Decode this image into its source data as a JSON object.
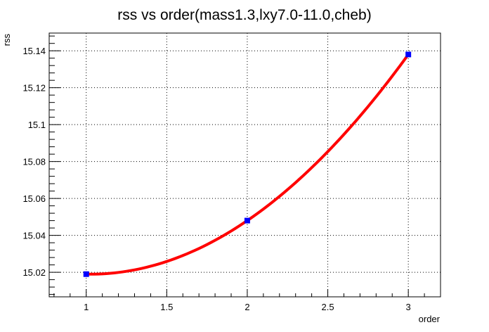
{
  "chart_data": {
    "type": "line",
    "title": "rss vs order(mass1.3,lxy7.0-11.0,cheb)",
    "xlabel": "order",
    "ylabel": "rss",
    "xlim": [
      0.77,
      3.2
    ],
    "ylim": [
      15.0067,
      15.1496
    ],
    "x_ticks": [
      1,
      1.5,
      2,
      2.5,
      3
    ],
    "x_tick_labels": [
      "1",
      "1.5",
      "2",
      "2.5",
      "3"
    ],
    "y_ticks": [
      15.02,
      15.04,
      15.06,
      15.08,
      15.1,
      15.12,
      15.14
    ],
    "y_tick_labels": [
      "15.02",
      "15.04",
      "15.06",
      "15.08",
      "15.1",
      "15.12",
      "15.14"
    ],
    "grid": true,
    "series": [
      {
        "x": [
          1,
          2,
          3
        ],
        "values": [
          15.019,
          15.048,
          15.138
        ],
        "line_color": "#ff0000",
        "marker_color": "#0000ff",
        "marker": "square",
        "smooth": true
      }
    ]
  }
}
